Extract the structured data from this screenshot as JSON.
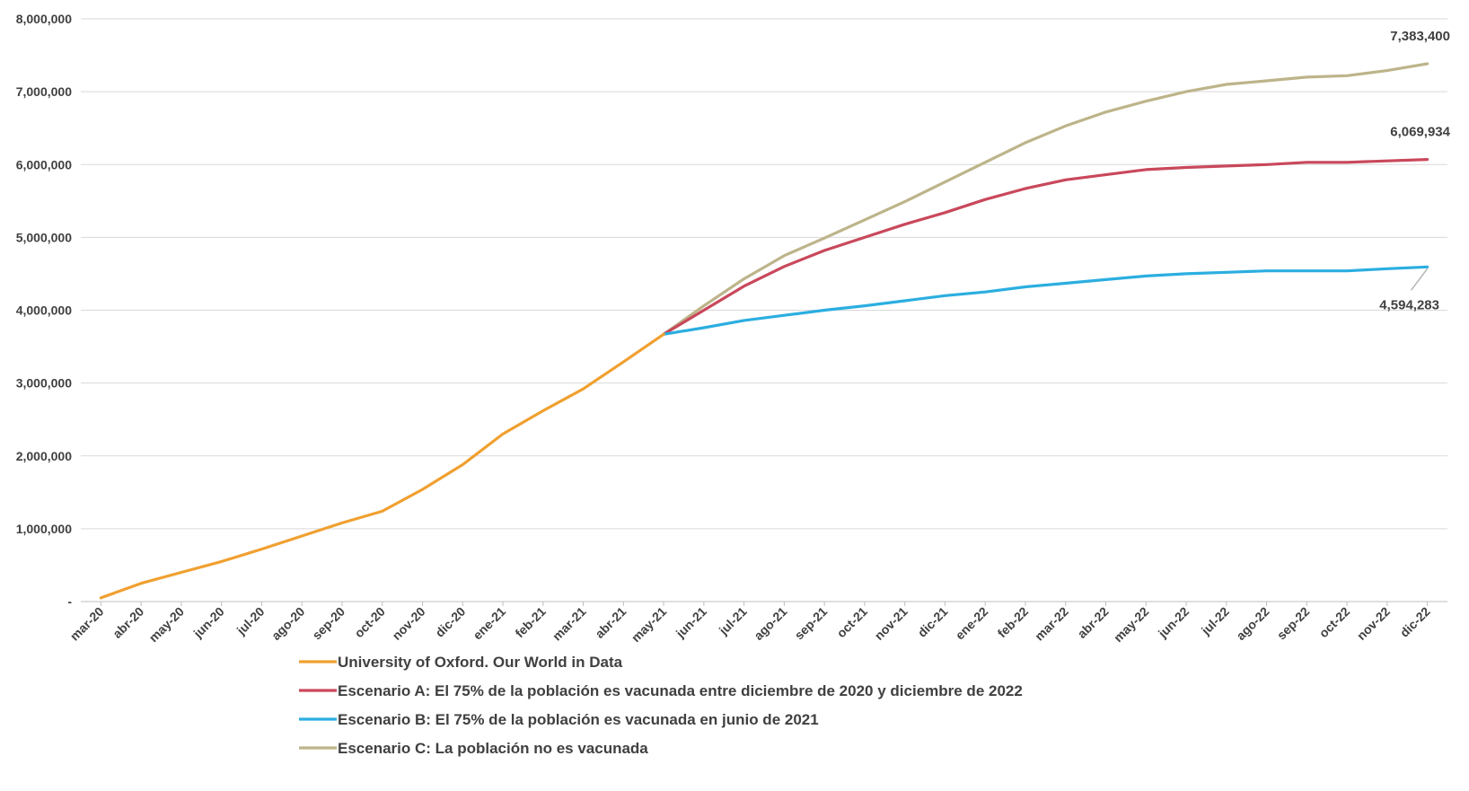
{
  "chart_data": {
    "type": "line",
    "title": "",
    "xlabel": "",
    "ylabel": "",
    "ylim": [
      0,
      8000000
    ],
    "y_ticks": [
      "-",
      "1,000,000",
      "2,000,000",
      "3,000,000",
      "4,000,000",
      "5,000,000",
      "6,000,000",
      "7,000,000",
      "8,000,000"
    ],
    "y_tick_values": [
      0,
      1000000,
      2000000,
      3000000,
      4000000,
      5000000,
      6000000,
      7000000,
      8000000
    ],
    "grid": "horizontal",
    "legend_position": "bottom",
    "categories": [
      "mar-20",
      "abr-20",
      "may-20",
      "jun-20",
      "jul-20",
      "ago-20",
      "sep-20",
      "oct-20",
      "nov-20",
      "dic-20",
      "ene-21",
      "feb-21",
      "mar-21",
      "abr-21",
      "may-21",
      "jun-21",
      "jul-21",
      "ago-21",
      "sep-21",
      "oct-21",
      "nov-21",
      "dic-21",
      "ene-22",
      "feb-22",
      "mar-22",
      "abr-22",
      "may-22",
      "jun-22",
      "jul-22",
      "ago-22",
      "sep-22",
      "oct-22",
      "nov-22",
      "dic-22"
    ],
    "series": [
      {
        "name": "University of Oxford. Our World in Data",
        "color": "#F0A030",
        "values": [
          50000,
          250000,
          400000,
          550000,
          720000,
          900000,
          1080000,
          1240000,
          1540000,
          1880000,
          2300000,
          2620000,
          2920000,
          3290000,
          3670000,
          null,
          null,
          null,
          null,
          null,
          null,
          null,
          null,
          null,
          null,
          null,
          null,
          null,
          null,
          null,
          null,
          null,
          null,
          null
        ]
      },
      {
        "name": "Escenario A: El 75% de la población es vacunada entre diciembre de 2020 y diciembre de 2022",
        "color": "#C9485B",
        "values": [
          null,
          null,
          null,
          null,
          null,
          null,
          null,
          null,
          null,
          null,
          null,
          null,
          null,
          null,
          3670000,
          4000000,
          4330000,
          4600000,
          4820000,
          5000000,
          5180000,
          5340000,
          5520000,
          5670000,
          5790000,
          5860000,
          5930000,
          5960000,
          5980000,
          6000000,
          6030000,
          6030000,
          6050000,
          6069934
        ]
      },
      {
        "name": "Escenario B: El 75% de la población es vacunada en junio de 2021",
        "color": "#2BAEE0",
        "values": [
          null,
          null,
          null,
          null,
          null,
          null,
          null,
          null,
          null,
          null,
          null,
          null,
          null,
          null,
          3670000,
          3760000,
          3860000,
          3930000,
          4000000,
          4060000,
          4130000,
          4200000,
          4250000,
          4320000,
          4370000,
          4420000,
          4470000,
          4500000,
          4520000,
          4540000,
          4540000,
          4540000,
          4570000,
          4594283
        ]
      },
      {
        "name": "Escenario C: La población no es vacunada",
        "color": "#BDB48A",
        "values": [
          null,
          null,
          null,
          null,
          null,
          null,
          null,
          null,
          null,
          null,
          null,
          null,
          null,
          null,
          3670000,
          4060000,
          4430000,
          4750000,
          4990000,
          5240000,
          5490000,
          5760000,
          6030000,
          6300000,
          6530000,
          6720000,
          6870000,
          7000000,
          7100000,
          7150000,
          7200000,
          7220000,
          7290000,
          7383400
        ]
      }
    ],
    "data_labels": [
      {
        "series": 3,
        "text": "7,383,400"
      },
      {
        "series": 1,
        "text": "6,069,934"
      },
      {
        "series": 2,
        "text": "4,594,283"
      }
    ]
  }
}
